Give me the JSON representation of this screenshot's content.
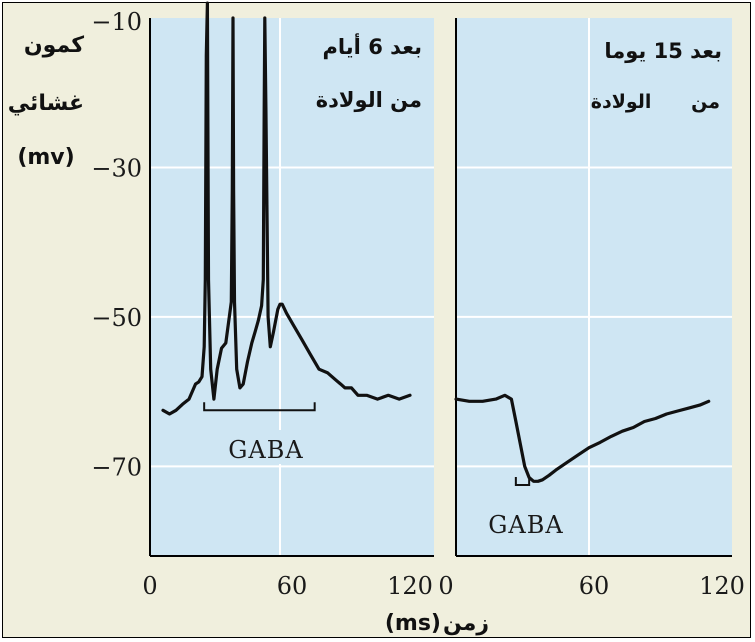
{
  "y_axis": {
    "label_line1": "كمون",
    "label_line2": "غشائي",
    "unit": "(mv)"
  },
  "x_axis": {
    "label_word": "زمن",
    "unit": "(ms)"
  },
  "colors": {
    "panel_bg": "#cfe6f3",
    "frame_bg": "#f0efdd",
    "trace": "#111111",
    "grid": "#ffffff"
  },
  "chart_data": [
    {
      "type": "line",
      "title_line1": "بعد 6 أيام",
      "title_line2": "من الولادة",
      "xlim": [
        0,
        120
      ],
      "ylim": [
        -82,
        -10
      ],
      "x_ticks": [
        "0",
        "60",
        "120"
      ],
      "y_ticks": [
        "-10",
        "-30",
        "-50",
        "-70"
      ],
      "y_tick_values": [
        -10,
        -30,
        -50,
        -70
      ],
      "grid": true,
      "annotation": {
        "text": "GABA",
        "x_start": 25,
        "x_end": 76,
        "y": -62.5
      },
      "series": [
        {
          "x": [
            6,
            9,
            12,
            15,
            18,
            21,
            22.5,
            24,
            25,
            25.5,
            26,
            26.5,
            27,
            28,
            29.5,
            31,
            33,
            35,
            36.5,
            37.5,
            38,
            38.3,
            38.6,
            39,
            40,
            41.5,
            43,
            45,
            47,
            48.5,
            50,
            51.5,
            52.3,
            52.7,
            53,
            53.5,
            54.5,
            55.5,
            57,
            59,
            60,
            61,
            63,
            66,
            70,
            74,
            78,
            82,
            86,
            88,
            90,
            93,
            96,
            100,
            105,
            110,
            115,
            120
          ],
          "y": [
            -62.5,
            -63,
            -62.5,
            -61.7,
            -61,
            -59,
            -58.7,
            -58,
            -54,
            -45,
            -15,
            -8,
            -45,
            -57,
            -61,
            -57,
            -54.2,
            -53.5,
            -50.2,
            -48,
            -33,
            -10,
            -33,
            -48,
            -57,
            -59.5,
            -59,
            -56,
            -53.5,
            -52,
            -50.5,
            -48.5,
            -45,
            -22,
            -10,
            -22,
            -50,
            -54,
            -52,
            -49,
            -48.3,
            -48.3,
            -49.5,
            -51,
            -53,
            -55,
            -57,
            -57.5,
            -58.5,
            -59,
            -59.5,
            -59.5,
            -60.5,
            -60.5,
            -61,
            -60.5,
            -61,
            -60.5
          ]
        }
      ]
    },
    {
      "type": "line",
      "title_line1": "بعد 15 يوما",
      "title_line2": "من      الولادة",
      "xlim": [
        0,
        120
      ],
      "ylim": [
        -82,
        -10
      ],
      "x_ticks": [
        "0",
        "60",
        "120"
      ],
      "grid": true,
      "annotation": {
        "text": "GABA",
        "x_start": 27,
        "x_end": 33,
        "y": -72.5
      },
      "series": [
        {
          "x": [
            0,
            6,
            12,
            18,
            22,
            25,
            27,
            29,
            31,
            33,
            35,
            37,
            39,
            42,
            45,
            50,
            55,
            60,
            65,
            70,
            75,
            80,
            85,
            90,
            95,
            100,
            105,
            110,
            114
          ],
          "y": [
            -61,
            -61.3,
            -61.3,
            -61,
            -60.5,
            -61,
            -64,
            -67,
            -70,
            -71.5,
            -72,
            -72,
            -71.8,
            -71.2,
            -70.5,
            -69.5,
            -68.5,
            -67.5,
            -66.8,
            -66,
            -65.3,
            -64.8,
            -64,
            -63.6,
            -63,
            -62.6,
            -62.2,
            -61.8,
            -61.3
          ]
        }
      ]
    }
  ]
}
